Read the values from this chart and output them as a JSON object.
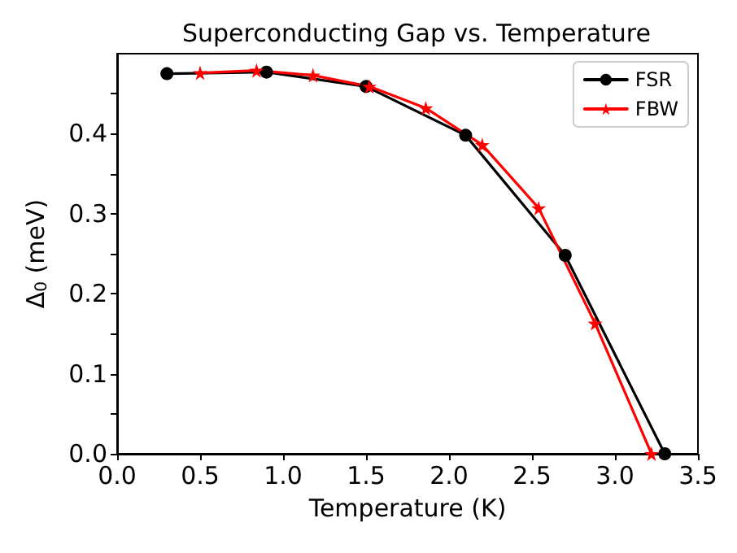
{
  "chart_data": {
    "type": "line",
    "title": "Superconducting Gap vs. Temperature",
    "xlabel": "Temperature (K)",
    "ylabel": "Δ$_{0}$ (meV)",
    "xlim": [
      0,
      3.5
    ],
    "xticks": [
      {
        "value": 0,
        "label": "0.0"
      },
      {
        "value": 0.5,
        "label": "0.5"
      },
      {
        "value": 1,
        "label": "1.0"
      },
      {
        "value": 1.5,
        "label": "1.5"
      },
      {
        "value": 2,
        "label": "2.0"
      },
      {
        "value": 2.5,
        "label": "2.5"
      },
      {
        "value": 3,
        "label": "3.0"
      },
      {
        "value": 3.5,
        "label": "3.5"
      }
    ],
    "ylim": [
      0,
      0.5
    ],
    "yticks": [
      {
        "value": 0,
        "label": "0.0"
      },
      {
        "value": 0.05,
        "label": null
      },
      {
        "value": 0.1,
        "label": "0.1"
      },
      {
        "value": 0.15,
        "label": null
      },
      {
        "value": 0.2,
        "label": "0.2"
      },
      {
        "value": 0.25,
        "label": null
      },
      {
        "value": 0.3,
        "label": "0.3"
      },
      {
        "value": 0.35,
        "label": null
      },
      {
        "value": 0.4,
        "label": "0.4"
      },
      {
        "value": 0.45,
        "label": null
      }
    ],
    "legend": "top right",
    "line_style": "solid",
    "series": [
      {
        "name": "FSR",
        "color": "#000000",
        "marker": "circle",
        "x": [
          0.3,
          0.9,
          1.5,
          2.1,
          2.7,
          3.3
        ],
        "values": [
          0.475,
          0.477,
          0.459,
          0.398,
          0.248,
          0.0
        ]
      },
      {
        "name": "FBW",
        "color": "#ff0000",
        "marker": "star",
        "x": [
          0.5,
          0.84,
          1.18,
          1.52,
          1.86,
          2.2,
          2.54,
          2.88,
          3.22
        ],
        "values": [
          0.476,
          0.479,
          0.473,
          0.459,
          0.432,
          0.386,
          0.307,
          0.163,
          0.0
        ]
      }
    ]
  }
}
